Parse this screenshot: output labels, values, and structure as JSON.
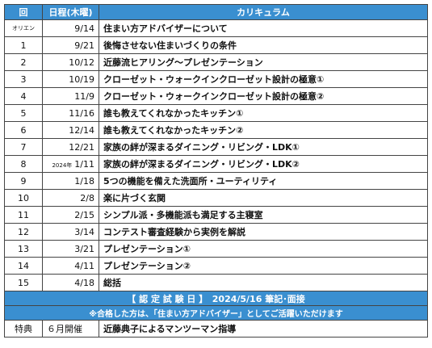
{
  "header": {
    "no": "回",
    "date": "日程(木曜)",
    "curriculum": "カリキュラム"
  },
  "rows": [
    {
      "no": "オリエン",
      "date": "9/14",
      "curriculum": "住まい方アドバイザーについて"
    },
    {
      "no": "1",
      "date": "9/21",
      "curriculum": "後悔させない住まいづくりの条件"
    },
    {
      "no": "2",
      "date": "10/12",
      "curriculum": "近藤流ヒアリング～プレゼンテーション"
    },
    {
      "no": "3",
      "date": "10/19",
      "curriculum": "クローゼット・ウォークインクローゼット設計の極意①"
    },
    {
      "no": "4",
      "date": "11/9",
      "curriculum": "クローゼット・ウォークインクローゼット設計の極意②"
    },
    {
      "no": "5",
      "date": "11/16",
      "curriculum": "誰も教えてくれなかったキッチン①"
    },
    {
      "no": "6",
      "date": "12/14",
      "curriculum": "誰も教えてくれなかったキッチン②"
    },
    {
      "no": "7",
      "date": "12/21",
      "curriculum": "家族の絆が深まるダイニング・リビング・LDK①"
    },
    {
      "no": "8",
      "year": "2024年",
      "date": "1/11",
      "curriculum": "家族の絆が深まるダイニング・リビング・LDK②"
    },
    {
      "no": "9",
      "date": "1/18",
      "curriculum": "5つの機能を備えた洗面所・ユーティリティ"
    },
    {
      "no": "10",
      "date": "2/8",
      "curriculum": "楽に片づく玄関"
    },
    {
      "no": "11",
      "date": "2/15",
      "curriculum": "シンプル派・多機能派も満足する主寝室"
    },
    {
      "no": "12",
      "date": "3/14",
      "curriculum": "コンテスト審査経験から実例を解説"
    },
    {
      "no": "13",
      "date": "3/21",
      "curriculum": "プレゼンテーション①"
    },
    {
      "no": "14",
      "date": "4/11",
      "curriculum": "プレゼンテーション②"
    },
    {
      "no": "15",
      "date": "4/18",
      "curriculum": "総括"
    }
  ],
  "exam": "【 認 定 試 験 日 】　2024/5/16 筆記･面接",
  "notice": "※合格した方は、「住まい方アドバイザー」としてご活躍いただけます",
  "bonus": {
    "label": "特典",
    "date": "６月開催",
    "content": "近藤典子によるマンツーマン指導"
  }
}
